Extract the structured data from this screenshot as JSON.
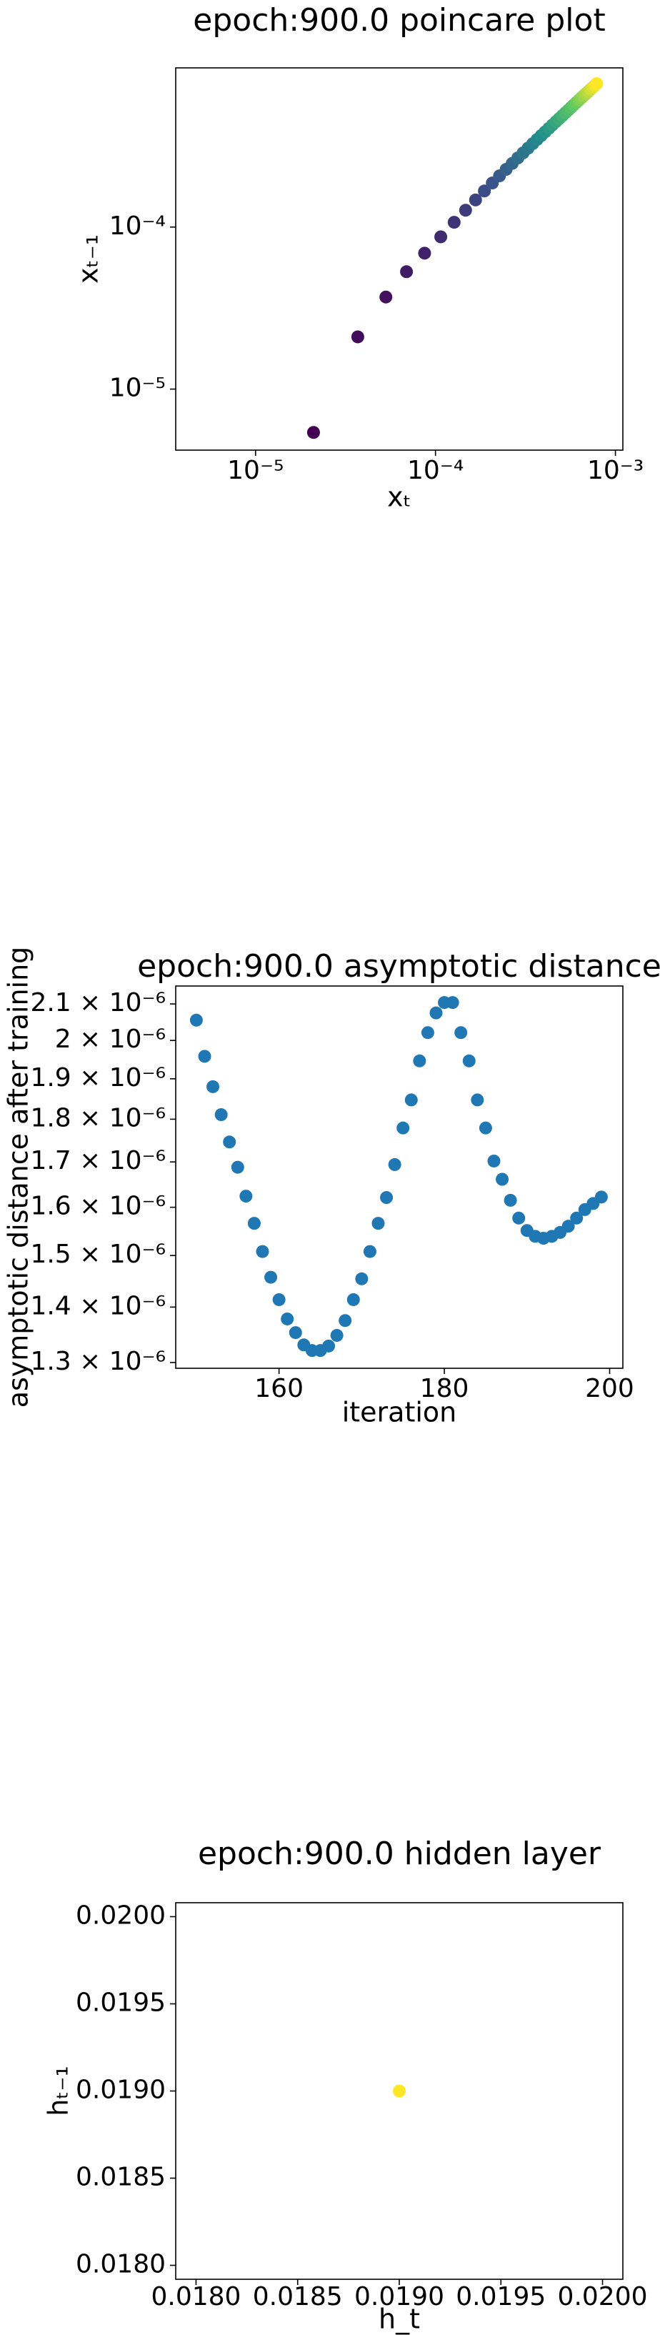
{
  "chart_data": [
    {
      "type": "scatter",
      "title": "epoch:900.0 poincare plot",
      "x_label": "xₜ",
      "y_label": "xₜ₋₁",
      "xscale": "log",
      "yscale": "log",
      "colormap": "viridis",
      "x": [
        2.1e-05,
        3.7e-05,
        5.3e-05,
        6.9e-05,
        8.7e-05,
        0.000107,
        0.000127,
        0.000147,
        0.000167,
        0.000187,
        0.000207,
        0.000227,
        0.000247,
        0.000267,
        0.000287,
        0.000307,
        0.000327,
        0.000347,
        0.000367,
        0.000387,
        0.000407,
        0.000427,
        0.000447,
        0.000467,
        0.000487,
        0.000507,
        0.000527,
        0.000547,
        0.000567,
        0.000587,
        0.000607,
        0.000627,
        0.000647,
        0.000667,
        0.000687,
        0.000707,
        0.000727,
        0.000747,
        0.000767,
        0.000787
      ],
      "values": [
        5.4e-06,
        2.1e-05,
        3.7e-05,
        5.3e-05,
        6.9e-05,
        8.7e-05,
        0.000107,
        0.000127,
        0.000147,
        0.000167,
        0.000187,
        0.000207,
        0.000227,
        0.000247,
        0.000267,
        0.000287,
        0.000307,
        0.000327,
        0.000347,
        0.000367,
        0.000387,
        0.000407,
        0.000427,
        0.000447,
        0.000467,
        0.000487,
        0.000507,
        0.000527,
        0.000547,
        0.000567,
        0.000587,
        0.000607,
        0.000627,
        0.000647,
        0.000667,
        0.000687,
        0.000707,
        0.000727,
        0.000747,
        0.000767
      ],
      "xlim": [
        3.6e-06,
        0.0011
      ],
      "ylim": [
        4.2e-06,
        0.00096
      ],
      "xticks": [
        {
          "value": 1e-05,
          "label": "10⁻⁵"
        },
        {
          "value": 0.0001,
          "label": "10⁻⁴"
        },
        {
          "value": 0.001,
          "label": "10⁻³"
        }
      ],
      "yticks": [
        {
          "value": 1e-05,
          "label": "10⁻⁵"
        },
        {
          "value": 0.0001,
          "label": "10⁻⁴"
        }
      ]
    },
    {
      "type": "scatter",
      "title": "epoch:900.0 asymptotic distance",
      "x_label": "iteration",
      "y_label": "asymptotic distance after training",
      "yscale": "log",
      "color": "#1f77b4",
      "x": [
        150,
        151,
        152,
        153,
        154,
        155,
        156,
        157,
        158,
        159,
        160,
        161,
        162,
        163,
        164,
        165,
        166,
        167,
        168,
        169,
        170,
        171,
        172,
        173,
        174,
        175,
        176,
        177,
        178,
        179,
        180,
        181,
        182,
        183,
        184,
        185,
        186,
        187,
        188,
        189,
        190,
        191,
        192,
        193,
        194,
        195,
        196,
        197,
        198,
        199
      ],
      "values": [
        2.055e-06,
        1.958e-06,
        1.88e-06,
        1.811e-06,
        1.746e-06,
        1.688e-06,
        1.624e-06,
        1.566e-06,
        1.508e-06,
        1.457e-06,
        1.414e-06,
        1.378e-06,
        1.353e-06,
        1.331e-06,
        1.321e-06,
        1.321e-06,
        1.329e-06,
        1.348e-06,
        1.375e-06,
        1.414e-06,
        1.454e-06,
        1.508e-06,
        1.566e-06,
        1.621e-06,
        1.694e-06,
        1.779e-06,
        1.847e-06,
        1.946e-06,
        2.021e-06,
        2.075e-06,
        2.104e-06,
        2.104e-06,
        2.021e-06,
        1.946e-06,
        1.847e-06,
        1.779e-06,
        1.702e-06,
        1.661e-06,
        1.615e-06,
        1.577e-06,
        1.551e-06,
        1.539e-06,
        1.535e-06,
        1.539e-06,
        1.547e-06,
        1.56e-06,
        1.577e-06,
        1.595e-06,
        1.608e-06,
        1.622e-06
      ],
      "xlim": [
        147.5,
        201.6
      ],
      "ylim": [
        1.29e-06,
        2.151e-06
      ],
      "xticks": [
        160,
        180,
        200
      ],
      "yticks": [
        {
          "value": 1.3e-06,
          "label": "1.3 × 10⁻⁶"
        },
        {
          "value": 1.4e-06,
          "label": "1.4 × 10⁻⁶"
        },
        {
          "value": 1.5e-06,
          "label": "1.5 × 10⁻⁶"
        },
        {
          "value": 1.6e-06,
          "label": "1.6 × 10⁻⁶"
        },
        {
          "value": 1.7e-06,
          "label": "1.7 × 10⁻⁶"
        },
        {
          "value": 1.8e-06,
          "label": "1.8 × 10⁻⁶"
        },
        {
          "value": 1.9e-06,
          "label": "1.9 × 10⁻⁶"
        },
        {
          "value": 2e-06,
          "label": "2 × 10⁻⁶"
        },
        {
          "value": 2.1e-06,
          "label": "2.1 × 10⁻⁶"
        }
      ]
    },
    {
      "type": "scatter",
      "title": "epoch:900.0 hidden layer",
      "x_label": "h_t",
      "y_label": "hₜ₋₁",
      "color": "#fde725",
      "x": [
        0.019
      ],
      "values": [
        0.019
      ],
      "xlim": [
        0.0179,
        0.0201
      ],
      "ylim": [
        0.01792,
        0.02008
      ],
      "xticks": [
        {
          "value": 0.018,
          "label": "0.0180"
        },
        {
          "value": 0.0185,
          "label": "0.0185"
        },
        {
          "value": 0.019,
          "label": "0.0190"
        },
        {
          "value": 0.0195,
          "label": "0.0195"
        },
        {
          "value": 0.02,
          "label": "0.0200"
        }
      ],
      "yticks": [
        {
          "value": 0.018,
          "label": "0.0180"
        },
        {
          "value": 0.0185,
          "label": "0.0185"
        },
        {
          "value": 0.019,
          "label": "0.0190"
        },
        {
          "value": 0.0195,
          "label": "0.0195"
        },
        {
          "value": 0.02,
          "label": "0.0200"
        }
      ]
    }
  ]
}
